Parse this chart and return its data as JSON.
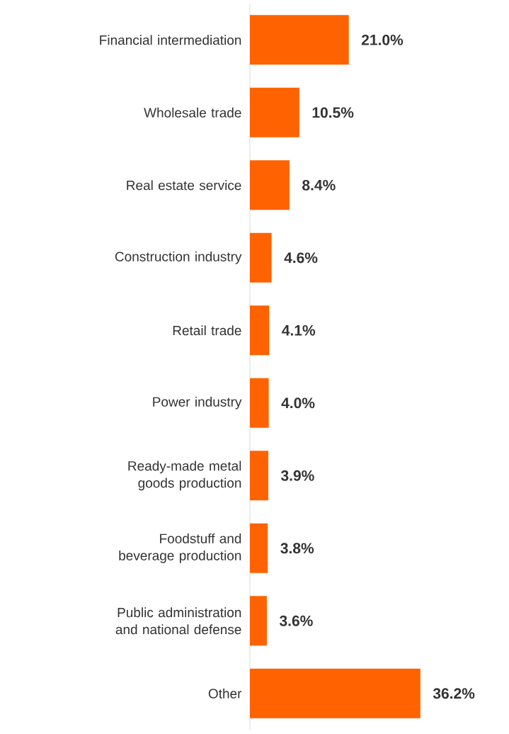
{
  "chart_data": {
    "type": "bar",
    "orientation": "horizontal",
    "color": "#ff6200",
    "categories": [
      "Financial intermediation",
      "Wholesale trade",
      "Real estate service",
      "Construction industry",
      "Retail trade",
      "Power industry",
      "Ready-made metal goods production",
      "Foodstuff and beverage production",
      "Public administration and national defense",
      "Other"
    ],
    "values": [
      21.0,
      10.5,
      8.4,
      4.6,
      4.1,
      4.0,
      3.9,
      3.8,
      3.6,
      36.2
    ],
    "value_labels": [
      "21.0%",
      "10.5%",
      "8.4%",
      "4.6%",
      "4.1%",
      "4.0%",
      "3.9%",
      "3.8%",
      "3.6%",
      "36.2%"
    ]
  }
}
